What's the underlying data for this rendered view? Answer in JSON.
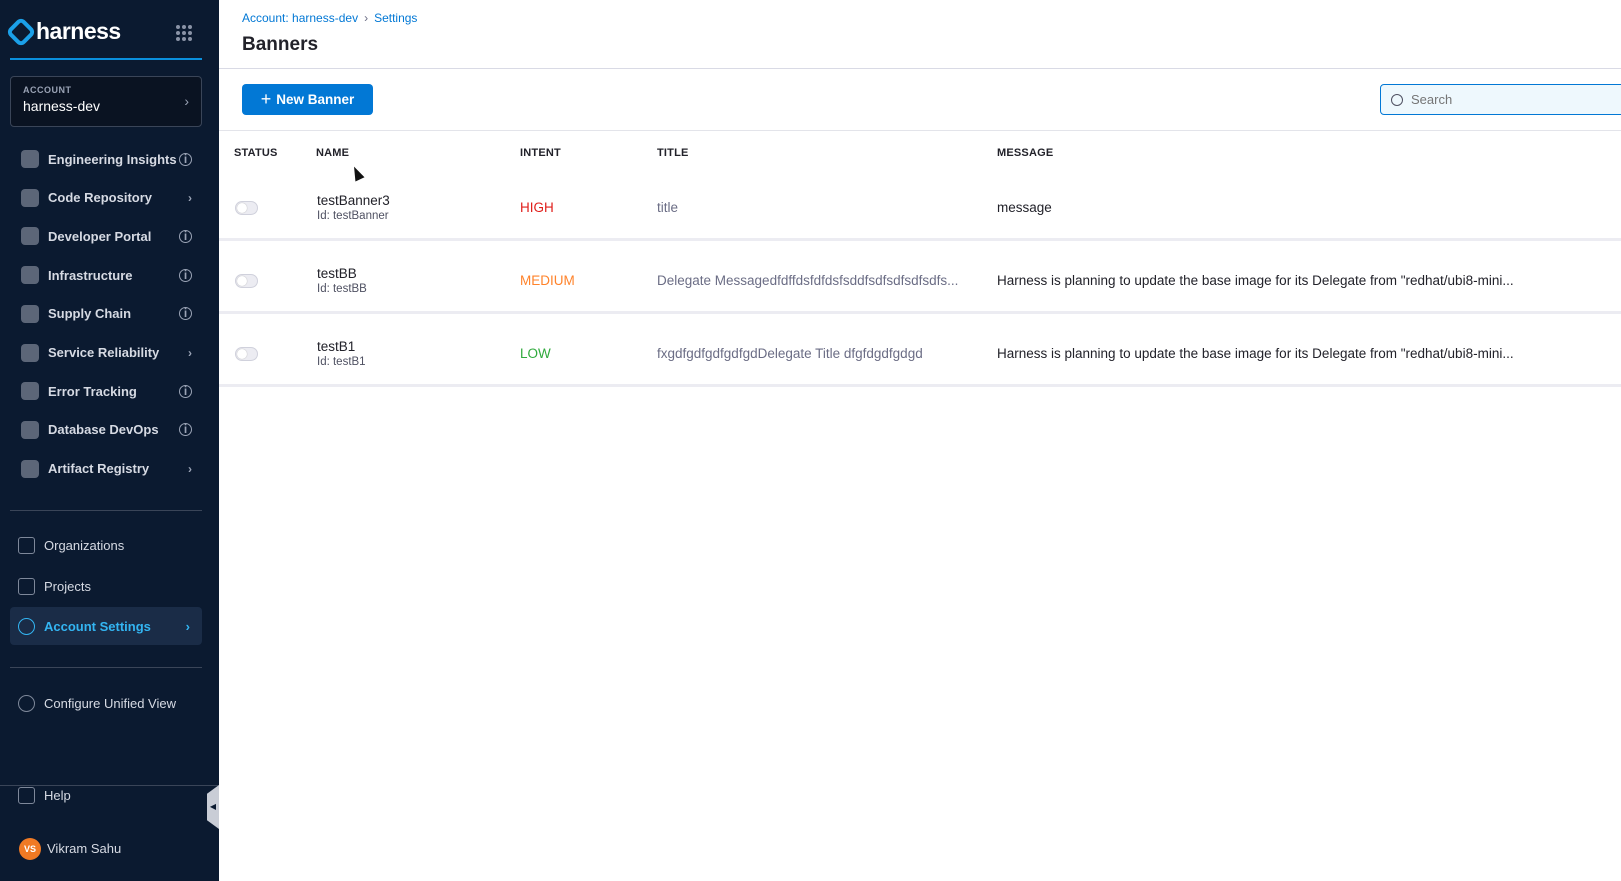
{
  "sidebar": {
    "logo": "harness",
    "account": {
      "label": "ACCOUNT",
      "name": "harness-dev"
    },
    "modules": [
      {
        "label": "Engineering Insights",
        "tail": "info"
      },
      {
        "label": "Code Repository",
        "tail": "chevron"
      },
      {
        "label": "Developer Portal",
        "tail": "info"
      },
      {
        "label": "Infrastructure",
        "tail": "info"
      },
      {
        "label": "Supply Chain",
        "tail": "info"
      },
      {
        "label": "Service Reliability",
        "tail": "chevron"
      },
      {
        "label": "Error Tracking",
        "tail": "info"
      },
      {
        "label": "Database DevOps",
        "tail": "info"
      },
      {
        "label": "Artifact Registry",
        "tail": "chevron"
      }
    ],
    "organizations": "Organizations",
    "projects": "Projects",
    "account_settings": "Account Settings",
    "configure": "Configure Unified View",
    "help": "Help",
    "user": {
      "initials": "VS",
      "name": "Vikram Sahu"
    }
  },
  "breadcrumb": [
    "Account: harness-dev",
    "Settings"
  ],
  "page_title": "Banners",
  "toolbar": {
    "new_banner": "New Banner",
    "search_placeholder": "Search"
  },
  "table": {
    "headers": [
      "STATUS",
      "NAME",
      "INTENT",
      "TITLE",
      "MESSAGE"
    ],
    "rows": [
      {
        "enabled": false,
        "name": "testBanner3",
        "id": "Id: testBanner",
        "intent": "HIGH",
        "title": "title",
        "message": "message"
      },
      {
        "enabled": false,
        "name": "testBB",
        "id": "Id: testBB",
        "intent": "MEDIUM",
        "title": "Delegate Messagedfdffdsfdfdsfsddfsdfsdfsdfsdfs...",
        "message": "Harness is planning to update the base image for its Delegate from \"redhat/ubi8-mini..."
      },
      {
        "enabled": false,
        "name": "testB1",
        "id": "Id: testB1",
        "intent": "LOW",
        "title": "fxgdfgdfgdfgdfgdDelegate Title dfgfdgdfgdgd",
        "message": "Harness is planning to update the base image for its Delegate from \"redhat/ubi8-mini..."
      }
    ]
  },
  "colors": {
    "accent": "#0278d5",
    "HIGH": "#e0201c",
    "MEDIUM": "#ff832b",
    "LOW": "#2faa3c",
    "sidebar": "#0b1a30"
  }
}
